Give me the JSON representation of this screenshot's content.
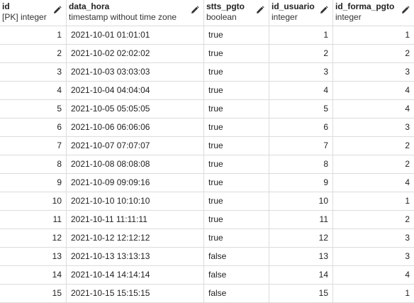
{
  "columns": [
    {
      "name": "id",
      "type": "[PK] integer"
    },
    {
      "name": "data_hora",
      "type": "timestamp without time zone"
    },
    {
      "name": "stts_pgto",
      "type": "boolean"
    },
    {
      "name": "id_usuario",
      "type": "integer"
    },
    {
      "name": "id_forma_pgto",
      "type": "integer"
    }
  ],
  "rows": [
    [
      "1",
      "2021-10-01 01:01:01",
      "true",
      "1",
      "1"
    ],
    [
      "2",
      "2021-10-02 02:02:02",
      "true",
      "2",
      "2"
    ],
    [
      "3",
      "2021-10-03 03:03:03",
      "true",
      "3",
      "3"
    ],
    [
      "4",
      "2021-10-04 04:04:04",
      "true",
      "4",
      "4"
    ],
    [
      "5",
      "2021-10-05 05:05:05",
      "true",
      "5",
      "4"
    ],
    [
      "6",
      "2021-10-06 06:06:06",
      "true",
      "6",
      "3"
    ],
    [
      "7",
      "2021-10-07 07:07:07",
      "true",
      "7",
      "2"
    ],
    [
      "8",
      "2021-10-08 08:08:08",
      "true",
      "8",
      "2"
    ],
    [
      "9",
      "2021-10-09 09:09:16",
      "true",
      "9",
      "4"
    ],
    [
      "10",
      "2021-10-10 10:10:10",
      "true",
      "10",
      "1"
    ],
    [
      "11",
      "2021-10-11 11:11:11",
      "true",
      "11",
      "2"
    ],
    [
      "12",
      "2021-10-12 12:12:12",
      "true",
      "12",
      "3"
    ],
    [
      "13",
      "2021-10-13 13:13:13",
      "false",
      "13",
      "3"
    ],
    [
      "14",
      "2021-10-14 14:14:14",
      "false",
      "14",
      "4"
    ],
    [
      "15",
      "2021-10-15 15:15:15",
      "false",
      "15",
      "1"
    ]
  ]
}
